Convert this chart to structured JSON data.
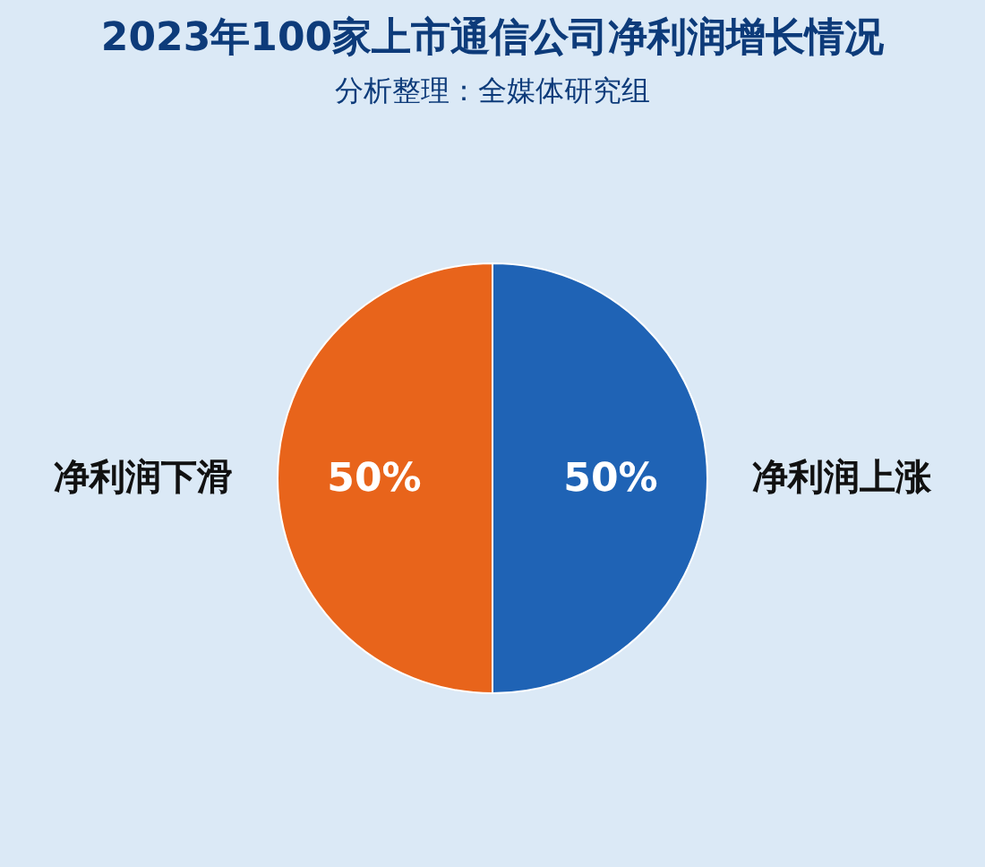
{
  "chart_data": {
    "type": "pie",
    "title": "2023年100家上市通信公司净利润增长情况",
    "subtitle": "分析整理：全媒体研究组",
    "categories": [
      "净利润上涨",
      "净利润下滑"
    ],
    "values": [
      50,
      50
    ],
    "colors": [
      "#1f63b5",
      "#e8641b"
    ],
    "value_labels": [
      "50%",
      "50%"
    ],
    "legend": false
  }
}
